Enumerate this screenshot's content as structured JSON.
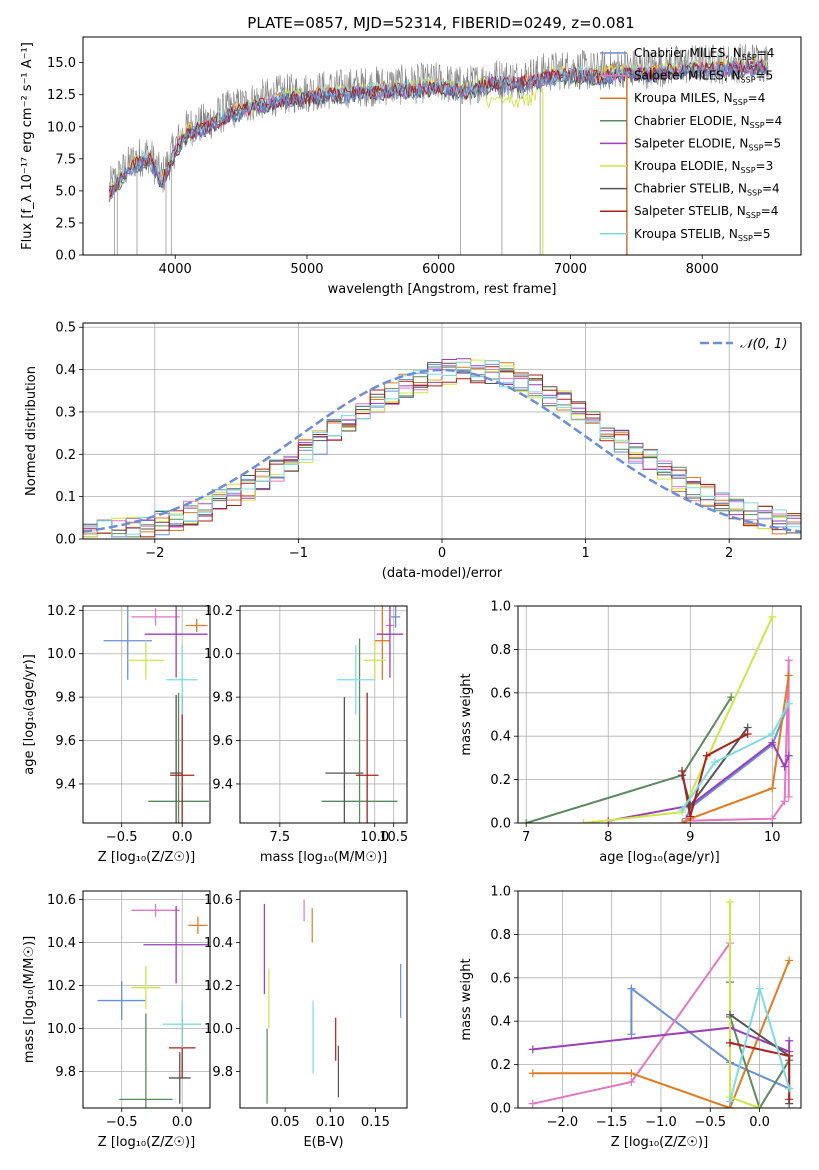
{
  "figure_title": "PLATE=0857, MJD=52314, FIBERID=0249, z=0.081",
  "series_colors": [
    "#808080",
    "#e377c2",
    "#ff7f0e",
    "#2ca02c",
    "#9467bd",
    "#d4e157",
    "#4d4d4d",
    "#a50f15",
    "#4dd0e1"
  ],
  "series_colors_named": {
    "chabrier_miles": "#6b8ed6",
    "salpeter_miles": "#e377c2",
    "kroupa_miles": "#e07b24",
    "chabrier_elodie": "#5a8a5f",
    "salpeter_elodie": "#9b3fb5",
    "kroupa_elodie": "#cde64a",
    "chabrier_stelib": "#555555",
    "salpeter_stelib": "#a8211c",
    "kroupa_stelib": "#7fdbe0"
  },
  "chart_data": [
    {
      "id": "spectrum",
      "type": "line",
      "xlabel": "wavelength [Angstrom, rest frame]",
      "ylabel": "Flux [f_λ 10⁻¹⁷ erg cm⁻² s⁻¹ A⁻¹]",
      "xlim": [
        3300,
        8750
      ],
      "ylim": [
        0,
        17
      ],
      "xticks": [
        "4000",
        "5000",
        "6000",
        "7000",
        "8000"
      ],
      "yticks": [
        "0.0",
        "2.5",
        "5.0",
        "7.5",
        "10.0",
        "12.5",
        "15.0"
      ],
      "legend_position": "right",
      "legend": [
        {
          "label": "Chabrier MILES, N",
          "sub": "SSP",
          "suffix": "=4"
        },
        {
          "label": "Salpeter MILES, N",
          "sub": "SSP",
          "suffix": "=5"
        },
        {
          "label": "Kroupa MILES, N",
          "sub": "SSP",
          "suffix": "=4"
        },
        {
          "label": "Chabrier ELODIE, N",
          "sub": "SSP",
          "suffix": "=4"
        },
        {
          "label": "Salpeter ELODIE, N",
          "sub": "SSP",
          "suffix": "=5"
        },
        {
          "label": "Kroupa ELODIE, N",
          "sub": "SSP",
          "suffix": "=3"
        },
        {
          "label": "Chabrier STELIB, N",
          "sub": "SSP",
          "suffix": "=4"
        },
        {
          "label": "Salpeter STELIB, N",
          "sub": "SSP",
          "suffix": "=4"
        },
        {
          "label": "Kroupa STELIB, N",
          "sub": "SSP",
          "suffix": "=5"
        }
      ],
      "data_continuum_x": [
        3500,
        3600,
        3700,
        3800,
        3900,
        4000,
        4100,
        4200,
        4300,
        4400,
        4500,
        4600,
        4700,
        4800,
        4900,
        5000,
        5200,
        5400,
        5600,
        5800,
        6000,
        6200,
        6400,
        6600,
        6800,
        7000,
        7200,
        7400,
        7600,
        7800,
        8000,
        8200,
        8400,
        8500
      ],
      "data_continuum_y": [
        5.2,
        6.5,
        7.5,
        7.9,
        6.0,
        8.5,
        10.0,
        10.2,
        10.7,
        11.3,
        11.6,
        12.0,
        12.2,
        12.5,
        12.6,
        12.7,
        12.9,
        13.1,
        13.2,
        13.3,
        13.5,
        13.1,
        13.8,
        13.7,
        14.2,
        14.5,
        14.3,
        14.6,
        14.5,
        14.8,
        14.9,
        14.9,
        15.1,
        15.0
      ],
      "absorption_spikes_x": [
        3540,
        3560,
        3710,
        3930,
        3970,
        6165,
        6480,
        6770,
        7425
      ]
    },
    {
      "id": "residuals",
      "type": "line",
      "xlabel": "(data-model)/error",
      "ylabel": "Normed distribution",
      "xlim": [
        -2.5,
        2.5
      ],
      "ylim": [
        0,
        0.51
      ],
      "xticks": [
        "−2",
        "−1",
        "0",
        "1",
        "2"
      ],
      "yticks": [
        "0.0",
        "0.1",
        "0.2",
        "0.3",
        "0.4",
        "0.5"
      ],
      "legend_position": "top-right",
      "normal_label": "𝒩(0, 1)",
      "bin_width": 0.1
    },
    {
      "id": "age-vs-Z",
      "type": "scatter",
      "xlabel": "Z [log₁₀(Z/Z☉)]",
      "ylabel": "age  [log₁₀(age/yr)]",
      "xlim": [
        -0.82,
        0.23
      ],
      "ylim": [
        9.22,
        10.22
      ],
      "xticks": [
        "−0.5",
        "0.0"
      ],
      "yticks": [
        "9.4",
        "9.6",
        "9.8",
        "10.0",
        "10.2"
      ],
      "points": [
        {
          "x": -0.45,
          "y": 10.06,
          "xe": 0.2,
          "ye": 0.18
        },
        {
          "x": -0.22,
          "y": 10.17,
          "xe": 0.2,
          "ye": 0.04
        },
        {
          "x": 0.12,
          "y": 10.13,
          "xe": 0.09,
          "ye": 0.03
        },
        {
          "x": -0.03,
          "y": 9.32,
          "xe": 0.25,
          "ye": 0.5
        },
        {
          "x": -0.05,
          "y": 10.09,
          "xe": 0.26,
          "ye": 0.2
        },
        {
          "x": -0.3,
          "y": 9.97,
          "xe": 0.15,
          "ye": 0.09
        },
        {
          "x": -0.05,
          "y": 9.45,
          "xe": 0.05,
          "ye": 0.36
        },
        {
          "x": 0.0,
          "y": 9.44,
          "xe": 0.1,
          "ye": 0.37
        },
        {
          "x": 0.0,
          "y": 9.88,
          "xe": 0.13,
          "ye": 0.16
        }
      ]
    },
    {
      "id": "age-vs-mass",
      "type": "scatter",
      "xlabel": "mass [log₁₀(M/M☉)]",
      "ylabel": "",
      "xlim": [
        6.45,
        10.85
      ],
      "ylim": [
        9.22,
        10.22
      ],
      "xticks": [
        "7.5",
        "10.0",
        "10.5"
      ],
      "xticks_values": [
        7.5,
        10.0,
        10.5
      ],
      "yticks": [
        "9.4",
        "9.6",
        "9.8",
        "10.0",
        "10.2"
      ],
      "points": [
        {
          "x": 10.55,
          "y": 10.17,
          "xe": 0.12,
          "ye": 0.05
        },
        {
          "x": 10.4,
          "y": 10.13,
          "xe": 0.12,
          "ye": 0.03
        },
        {
          "x": 10.2,
          "y": 10.06,
          "xe": 0.2,
          "ye": 0.18
        },
        {
          "x": 9.6,
          "y": 9.32,
          "xe": 1.0,
          "ye": 0.75
        },
        {
          "x": 10.4,
          "y": 10.09,
          "xe": 0.35,
          "ye": 0.2
        },
        {
          "x": 10.0,
          "y": 9.97,
          "xe": 0.3,
          "ye": 0.09
        },
        {
          "x": 9.2,
          "y": 9.45,
          "xe": 0.5,
          "ye": 0.35
        },
        {
          "x": 9.8,
          "y": 9.44,
          "xe": 0.3,
          "ye": 0.38
        },
        {
          "x": 9.5,
          "y": 9.88,
          "xe": 0.5,
          "ye": 0.16
        }
      ]
    },
    {
      "id": "weight-vs-age",
      "type": "line",
      "xlabel": "age  [log₁₀(age/yr)]",
      "ylabel": "mass weight",
      "xlim": [
        6.9,
        10.35
      ],
      "ylim": [
        0,
        1.0
      ],
      "xticks": [
        "7",
        "8",
        "9",
        "10"
      ],
      "yticks": [
        "0.0",
        "0.2",
        "0.4",
        "0.6",
        "0.8",
        "1.0"
      ],
      "series": [
        {
          "x": [
            8.95,
            9.0,
            10.0,
            10.2
          ],
          "y": [
            0.02,
            0.07,
            0.36,
            0.55
          ]
        },
        {
          "x": [
            8.95,
            10.0,
            10.15,
            10.2,
            10.2
          ],
          "y": [
            0.01,
            0.02,
            0.1,
            0.75,
            0.12
          ]
        },
        {
          "x": [
            8.9,
            9.0,
            10.0,
            10.2
          ],
          "y": [
            0.0,
            0.02,
            0.16,
            0.68
          ]
        },
        {
          "x": [
            7.0,
            8.9,
            9.5
          ],
          "y": [
            0.0,
            0.22,
            0.58
          ]
        },
        {
          "x": [
            8.0,
            9.0,
            10.0,
            10.15,
            10.2
          ],
          "y": [
            0.01,
            0.08,
            0.37,
            0.26,
            0.31
          ]
        },
        {
          "x": [
            7.7,
            8.9,
            10.0
          ],
          "y": [
            0.0,
            0.05,
            0.95
          ]
        },
        {
          "x": [
            8.9,
            9.0,
            9.7
          ],
          "y": [
            0.22,
            0.08,
            0.44
          ]
        },
        {
          "x": [
            8.9,
            9.0,
            9.2,
            9.7
          ],
          "y": [
            0.24,
            0.03,
            0.31,
            0.41
          ]
        },
        {
          "x": [
            8.9,
            9.3,
            10.0,
            10.2
          ],
          "y": [
            0.06,
            0.28,
            0.41,
            0.55
          ]
        }
      ]
    },
    {
      "id": "mass-vs-Z",
      "type": "scatter",
      "xlabel": "Z [log₁₀(Z/Z☉)]",
      "ylabel": "mass [log₁₀(M/M☉)]",
      "xlim": [
        -0.82,
        0.23
      ],
      "ylim": [
        9.63,
        10.64
      ],
      "xticks": [
        "−0.5",
        "0.0"
      ],
      "yticks": [
        "9.8",
        "10.0",
        "10.2",
        "10.4",
        "10.6"
      ],
      "points": [
        {
          "x": -0.5,
          "y": 10.13,
          "xe": 0.2,
          "ye": 0.09
        },
        {
          "x": -0.22,
          "y": 10.55,
          "xe": 0.2,
          "ye": 0.03
        },
        {
          "x": 0.13,
          "y": 10.48,
          "xe": 0.08,
          "ye": 0.04
        },
        {
          "x": -0.3,
          "y": 9.67,
          "xe": 0.22,
          "ye": 0.4
        },
        {
          "x": -0.05,
          "y": 10.39,
          "xe": 0.27,
          "ye": 0.18
        },
        {
          "x": -0.3,
          "y": 10.19,
          "xe": 0.12,
          "ye": 0.1
        },
        {
          "x": -0.02,
          "y": 9.77,
          "xe": 0.09,
          "ye": 0.12
        },
        {
          "x": 0.0,
          "y": 9.91,
          "xe": 0.11,
          "ye": 0.14
        },
        {
          "x": 0.0,
          "y": 10.02,
          "xe": 0.16,
          "ye": 0.11
        }
      ]
    },
    {
      "id": "mass-vs-EBV",
      "type": "scatter",
      "xlabel": "E(B-V)",
      "ylabel": "",
      "xlim": [
        0.0,
        0.185
      ],
      "ylim": [
        9.63,
        10.64
      ],
      "xticks": [
        "0.05",
        "0.10",
        "0.15"
      ],
      "yticks": [
        "9.8",
        "10.0",
        "10.2",
        "10.4",
        "10.6"
      ],
      "vlines": [
        {
          "x": 0.178,
          "y0": 10.05,
          "y1": 10.3
        },
        {
          "x": 0.071,
          "y0": 10.5,
          "y1": 10.6
        },
        {
          "x": 0.08,
          "y0": 10.4,
          "y1": 10.56
        },
        {
          "x": 0.03,
          "y0": 9.65,
          "y1": 10.0
        },
        {
          "x": 0.027,
          "y0": 10.16,
          "y1": 10.58
        },
        {
          "x": 0.032,
          "y0": 10.0,
          "y1": 10.28
        },
        {
          "x": 0.109,
          "y0": 9.68,
          "y1": 9.92
        },
        {
          "x": 0.106,
          "y0": 9.85,
          "y1": 10.05
        },
        {
          "x": 0.081,
          "y0": 9.79,
          "y1": 10.13
        }
      ]
    },
    {
      "id": "weight-vs-Z",
      "type": "line",
      "xlabel": "Z [log₁₀(Z/Z☉)]",
      "ylabel": "mass weight",
      "xlim": [
        -2.45,
        0.42
      ],
      "ylim": [
        0,
        1.0
      ],
      "xticks": [
        "−2.0",
        "−1.5",
        "−1.0",
        "−0.5",
        "0.0"
      ],
      "yticks": [
        "0.0",
        "0.2",
        "0.4",
        "0.6",
        "0.8",
        "1.0"
      ],
      "series": [
        {
          "x": [
            -1.3,
            -1.3,
            -0.3,
            0.3
          ],
          "y": [
            0.34,
            0.55,
            0.21,
            0.09
          ]
        },
        {
          "x": [
            -2.3,
            -1.3,
            -0.3,
            -0.3
          ],
          "y": [
            0.02,
            0.12,
            0.76,
            0.0
          ]
        },
        {
          "x": [
            -2.3,
            -1.3,
            -0.3,
            0.3
          ],
          "y": [
            0.16,
            0.16,
            0.0,
            0.68
          ]
        },
        {
          "x": [
            -0.3,
            -0.3,
            0.0,
            0.3
          ],
          "y": [
            0.58,
            0.42,
            0.0,
            0.22
          ]
        },
        {
          "x": [
            -2.3,
            -0.3,
            0.3,
            0.3
          ],
          "y": [
            0.27,
            0.37,
            0.26,
            0.31
          ]
        },
        {
          "x": [
            -0.3,
            -0.3,
            0.0
          ],
          "y": [
            0.95,
            0.05,
            0.0
          ]
        },
        {
          "x": [
            -0.3,
            0.3,
            0.3
          ],
          "y": [
            0.43,
            0.24,
            0.02
          ]
        },
        {
          "x": [
            -0.3,
            0.3,
            0.3
          ],
          "y": [
            0.3,
            0.24,
            0.04
          ]
        },
        {
          "x": [
            -0.3,
            0.0,
            0.3
          ],
          "y": [
            0.03,
            0.55,
            0.09
          ]
        }
      ]
    }
  ]
}
